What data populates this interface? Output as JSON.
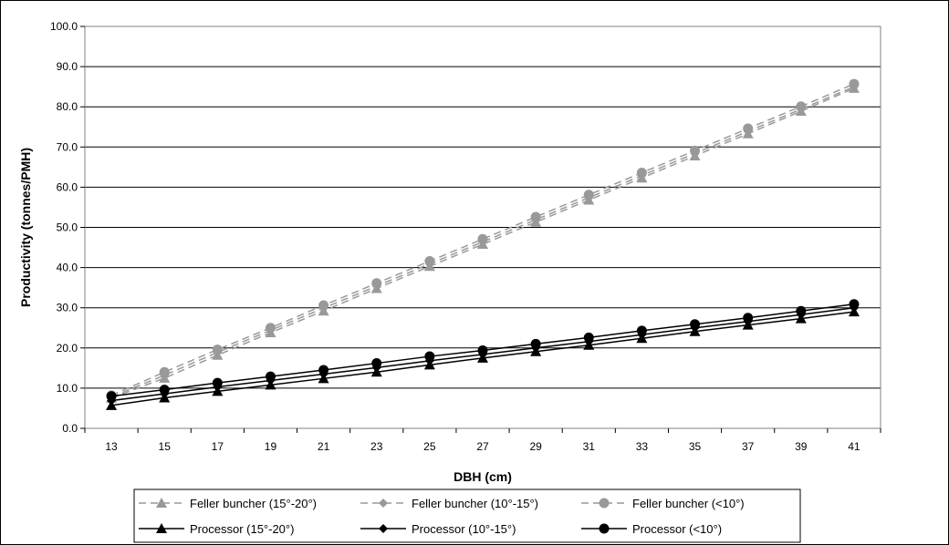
{
  "chart_data": {
    "type": "line",
    "xlabel": "DBH (cm)",
    "ylabel": "Productivity (tonnes/PMH)",
    "x": [
      13,
      15,
      17,
      19,
      21,
      23,
      25,
      27,
      29,
      31,
      33,
      35,
      37,
      39,
      41
    ],
    "ylim": [
      0,
      100
    ],
    "yticks": [
      "0.0",
      "10.0",
      "20.0",
      "30.0",
      "40.0",
      "50.0",
      "60.0",
      "70.0",
      "80.0",
      "90.0",
      "100.0"
    ],
    "grid": "horizontal",
    "legend_position": "bottom",
    "series": [
      {
        "name": "Feller buncher (15°-20°)",
        "color": "#999999",
        "dash": "dashed",
        "marker": "triangle",
        "values": [
          7.5,
          12.5,
          18.2,
          23.8,
          29.2,
          34.8,
          40.3,
          45.8,
          51.3,
          56.8,
          62.3,
          67.8,
          73.3,
          78.9,
          84.6
        ]
      },
      {
        "name": "Feller buncher (10°-15°)",
        "color": "#999999",
        "dash": "dashed",
        "marker": "diamond",
        "values": [
          7.8,
          13.2,
          18.9,
          24.4,
          29.9,
          35.4,
          40.9,
          46.4,
          51.9,
          57.4,
          62.9,
          68.4,
          73.9,
          79.4,
          85.0
        ]
      },
      {
        "name": "Feller buncher (<10°)",
        "color": "#999999",
        "dash": "dashed",
        "marker": "circle",
        "values": [
          8.2,
          14.0,
          19.6,
          25.0,
          30.6,
          36.1,
          41.6,
          47.1,
          52.6,
          58.1,
          63.6,
          69.1,
          74.6,
          80.1,
          85.7
        ]
      },
      {
        "name": "Processor (15°-20°)",
        "color": "#000000",
        "dash": "solid",
        "marker": "triangle",
        "values": [
          5.7,
          7.6,
          9.2,
          10.8,
          12.4,
          14.0,
          15.8,
          17.5,
          19.1,
          20.7,
          22.4,
          24.1,
          25.7,
          27.3,
          29.0
        ]
      },
      {
        "name": "Processor (10°-15°)",
        "color": "#000000",
        "dash": "solid",
        "marker": "diamond",
        "values": [
          6.9,
          8.6,
          10.3,
          11.9,
          13.5,
          15.1,
          16.8,
          18.4,
          20.0,
          21.6,
          23.3,
          25.0,
          26.6,
          28.3,
          30.0
        ]
      },
      {
        "name": "Processor (<10°)",
        "color": "#000000",
        "dash": "solid",
        "marker": "circle",
        "values": [
          8.0,
          9.6,
          11.3,
          12.9,
          14.5,
          16.2,
          17.9,
          19.4,
          21.0,
          22.6,
          24.3,
          25.9,
          27.5,
          29.2,
          30.9
        ]
      }
    ]
  }
}
